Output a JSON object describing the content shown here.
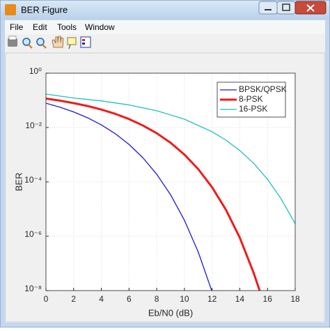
{
  "window": {
    "title": "BER Figure",
    "menu": [
      "File",
      "Edit",
      "Tools",
      "Window"
    ]
  },
  "chart_data": {
    "type": "line",
    "xlabel": "Eb/N0 (dB)",
    "ylabel": "BER",
    "xlim": [
      0,
      18
    ],
    "xticks": [
      0,
      2,
      4,
      6,
      8,
      10,
      12,
      14,
      16,
      18
    ],
    "ylim": [
      1e-08,
      1
    ],
    "log_y": true,
    "grid": true,
    "legend": "upper right",
    "yticks": [
      {
        "value": 1e-08,
        "label": "10⁻⁸"
      },
      {
        "value": 1e-06,
        "label": "10⁻⁶"
      },
      {
        "value": 0.0001,
        "label": "10⁻⁴"
      },
      {
        "value": 0.01,
        "label": "10⁻²"
      },
      {
        "value": 1,
        "label": "10⁰"
      }
    ],
    "series": [
      {
        "name": "BPSK/QPSK",
        "color": "#1a1ad6",
        "width": 1.3,
        "x": [
          0,
          1,
          2,
          3,
          4,
          5,
          6,
          7,
          8,
          9,
          10,
          11,
          12
        ],
        "values": [
          0.0786,
          0.0563,
          0.0375,
          0.0229,
          0.0125,
          0.00595,
          0.00239,
          0.000773,
          0.000191,
          3.36e-05,
          3.87e-06,
          2.61e-07,
          9e-09
        ]
      },
      {
        "name": "8-PSK",
        "color": "#ee1c1c",
        "width": 3,
        "x": [
          0,
          1,
          2,
          3,
          4,
          5,
          6,
          7,
          8,
          9,
          10,
          11,
          12,
          13,
          14,
          15,
          15.5
        ],
        "values": [
          0.116,
          0.0976,
          0.079,
          0.0619,
          0.0458,
          0.0319,
          0.0205,
          0.0119,
          0.00617,
          0.00275,
          0.00101,
          0.000294,
          6.3e-05,
          9.4e-06,
          8.8e-07,
          4.5e-08,
          7.9e-09
        ]
      },
      {
        "name": "16-PSK",
        "color": "#1fbfbf",
        "width": 1.3,
        "x": [
          0,
          2,
          4,
          6,
          8,
          10,
          12,
          13,
          14,
          15,
          16,
          17,
          18
        ],
        "values": [
          0.17,
          0.122,
          0.0954,
          0.0678,
          0.0415,
          0.0203,
          0.007,
          0.00343,
          0.00142,
          0.00048,
          0.000125,
          2.3e-05,
          2.9e-06
        ]
      }
    ]
  }
}
